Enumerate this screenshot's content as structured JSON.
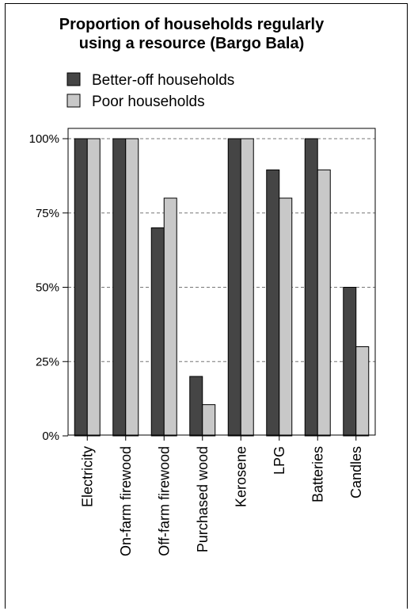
{
  "chart_data": {
    "type": "bar",
    "title": "Proportion of households regularly using a resource (Bargo Bala)",
    "title_lines": [
      "Proportion of households regularly",
      "using a resource (Bargo Bala)"
    ],
    "categories": [
      "Electricity",
      "On-farm firewood",
      "Off-farm firewood",
      "Purchased wood",
      "Kerosene",
      "LPG",
      "Batteries",
      "Candles"
    ],
    "series": [
      {
        "name": "Better-off households",
        "color": "#454545",
        "values": [
          100,
          100,
          70,
          20,
          100,
          89.5,
          100,
          50
        ]
      },
      {
        "name": "Poor households",
        "color": "#c8c8c8",
        "values": [
          100,
          100,
          80,
          10.5,
          100,
          80,
          89.5,
          30
        ]
      }
    ],
    "ylim": [
      0,
      100
    ],
    "yticks": [
      0,
      25,
      50,
      75,
      100
    ],
    "ytick_labels": [
      "0%",
      "25%",
      "50%",
      "75%",
      "100%"
    ],
    "grid": "horizontal dashed",
    "legend": "top-left",
    "xlabel": "",
    "ylabel": ""
  }
}
